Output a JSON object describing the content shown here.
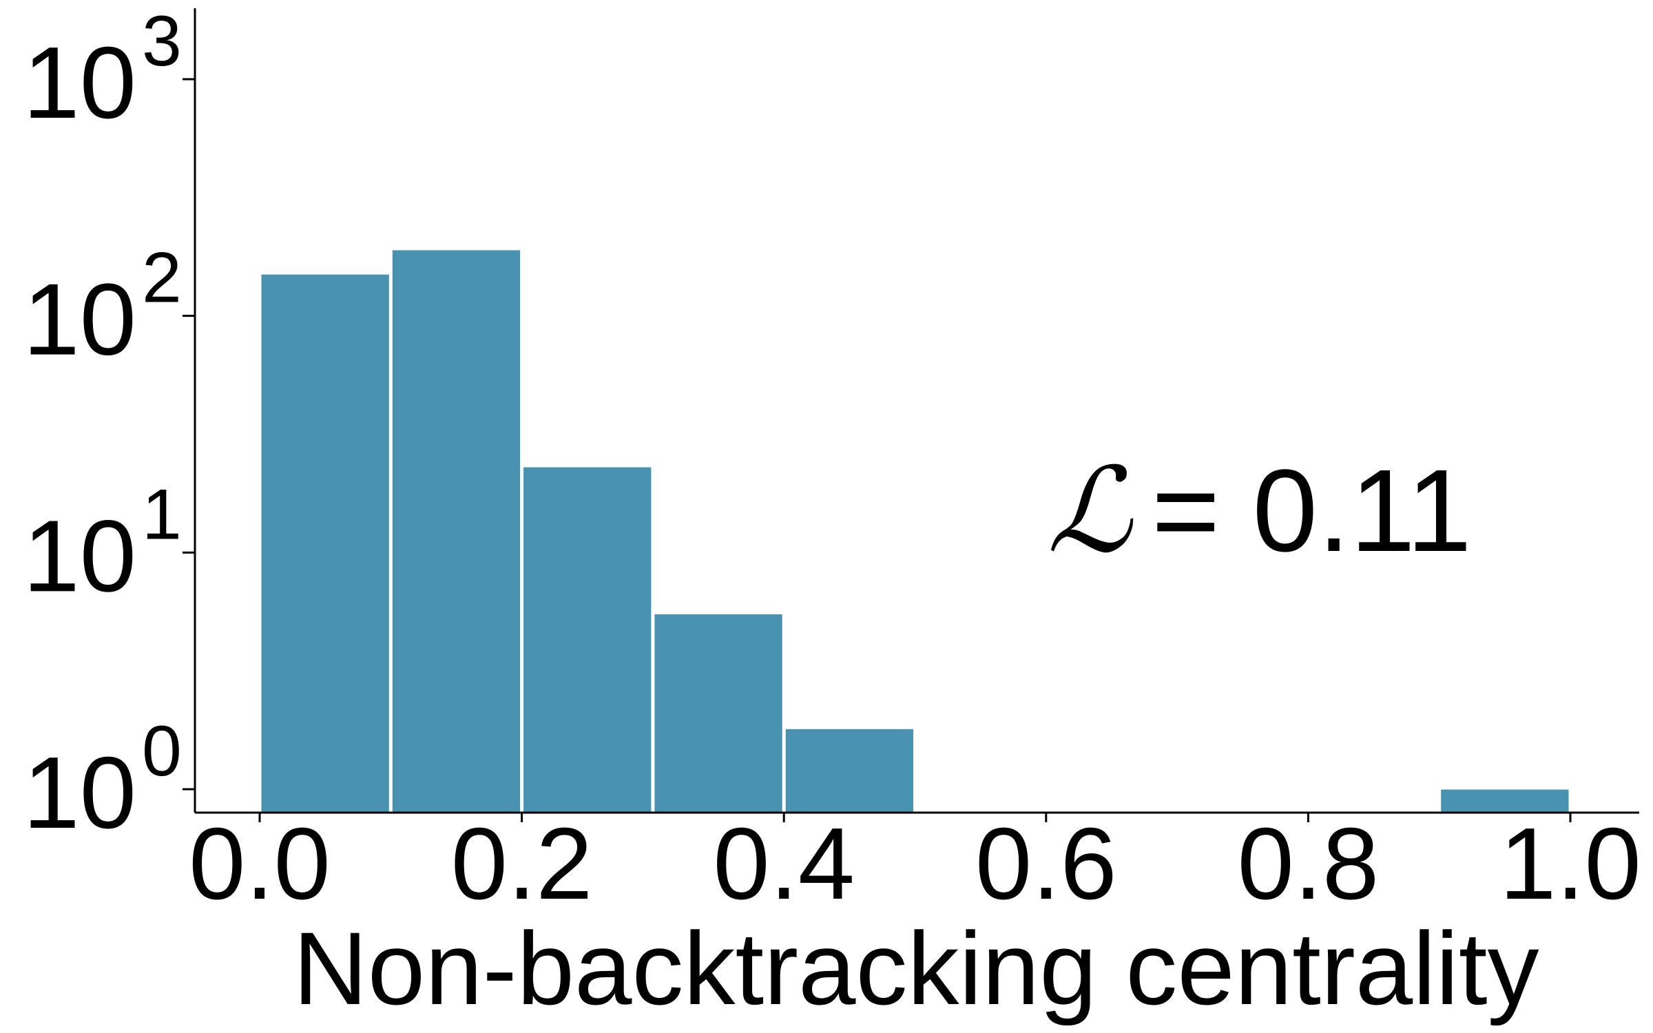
{
  "chart_data": {
    "type": "bar",
    "title": "",
    "xlabel": "Non-backtracking centrality",
    "ylabel": "",
    "yscale": "log",
    "xlim": [
      -0.05,
      1.05
    ],
    "ylim": [
      0.6,
      2000
    ],
    "grid": false,
    "legend": "none",
    "bar_color": "#4a93b0",
    "bar_edge_color": "#ffffff",
    "bins": [
      {
        "x0": 0.0,
        "x1": 0.1,
        "count": 150
      },
      {
        "x0": 0.1,
        "x1": 0.2,
        "count": 190
      },
      {
        "x0": 0.2,
        "x1": 0.3,
        "count": 23
      },
      {
        "x0": 0.3,
        "x1": 0.4,
        "count": 5.5
      },
      {
        "x0": 0.4,
        "x1": 0.5,
        "count": 1.8
      },
      {
        "x0": 0.9,
        "x1": 1.0,
        "count": 1
      }
    ],
    "x_ticks": [
      {
        "value": 0.0,
        "label": "0.0"
      },
      {
        "value": 0.2,
        "label": "0.2"
      },
      {
        "value": 0.4,
        "label": "0.4"
      },
      {
        "value": 0.6,
        "label": "0.6"
      },
      {
        "value": 0.8,
        "label": "0.8"
      },
      {
        "value": 1.0,
        "label": "1.0"
      }
    ],
    "y_ticks": [
      {
        "value": 1,
        "base": "10",
        "exponent": "0"
      },
      {
        "value": 10,
        "base": "10",
        "exponent": "1"
      },
      {
        "value": 100,
        "base": "10",
        "exponent": "2"
      },
      {
        "value": 1000,
        "base": "10",
        "exponent": "3"
      }
    ],
    "annotation": {
      "symbol": "ℒ",
      "text": "= 0.11"
    }
  }
}
